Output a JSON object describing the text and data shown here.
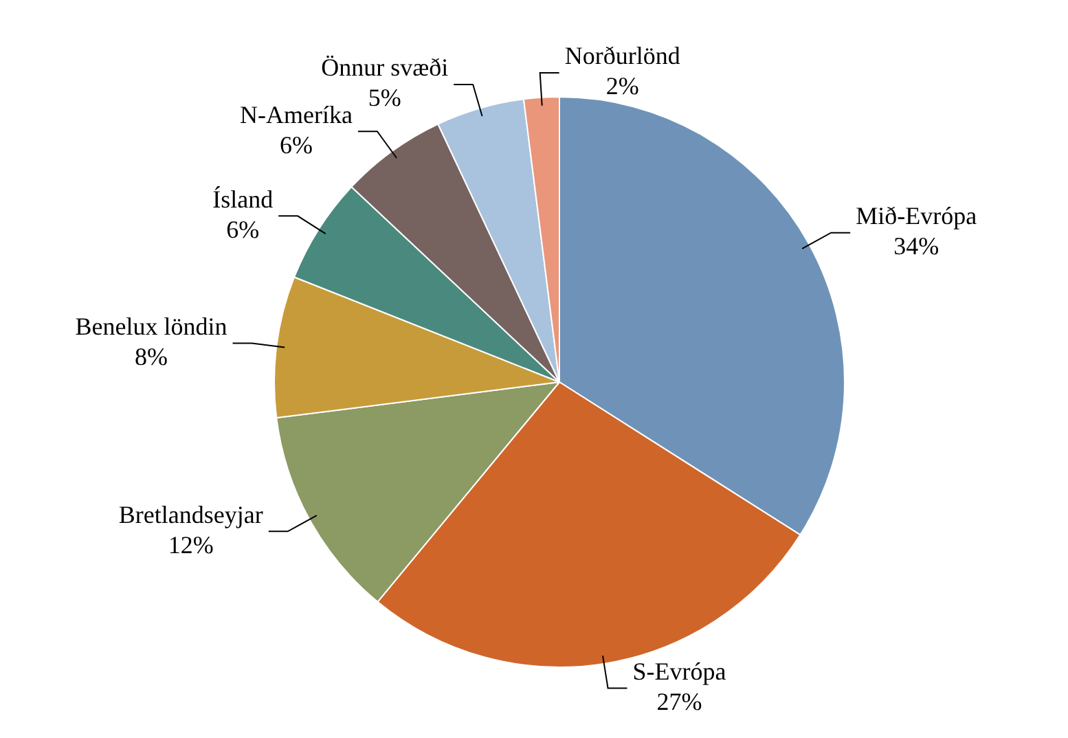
{
  "chart_data": {
    "type": "pie",
    "categories": [
      "Mið-Evrópa",
      "S-Evrópa",
      "Bretlandseyjar",
      "Benelux löndin",
      "Ísland",
      "N-Ameríka",
      "Önnur svæði",
      "Norðurlönd"
    ],
    "values": [
      34,
      27,
      12,
      8,
      6,
      6,
      5,
      2
    ],
    "value_labels": [
      "34%",
      "27%",
      "12%",
      "8%",
      "6%",
      "6%",
      "5%",
      "2%"
    ],
    "colors": [
      "#6f93b8",
      "#d0652a",
      "#8c9a63",
      "#c89b3a",
      "#4a8a7e",
      "#76635f",
      "#a9c3de",
      "#e9967a"
    ],
    "legend": false
  }
}
